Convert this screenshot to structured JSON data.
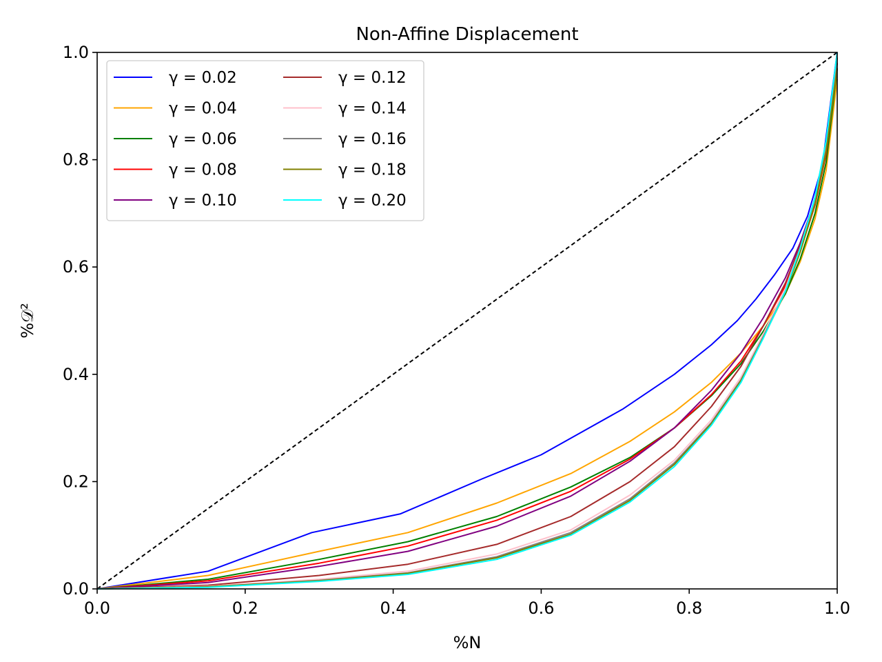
{
  "chart_data": {
    "type": "line",
    "title": "Non-Affine Displacement",
    "xlabel": "%N",
    "ylabel": "%𝒟²",
    "xlim": [
      0,
      1
    ],
    "ylim": [
      0,
      1
    ],
    "x_ticks": [
      "0.0",
      "0.2",
      "0.4",
      "0.6",
      "0.8",
      "1.0"
    ],
    "y_ticks": [
      "0.0",
      "0.2",
      "0.4",
      "0.6",
      "0.8",
      "1.0"
    ],
    "grid": false,
    "legend_position": "upper-left",
    "legend_columns": 2,
    "reference_line": {
      "name": "identity",
      "style": "dashed",
      "color": "#000000",
      "x": [
        0,
        1
      ],
      "y": [
        0,
        1
      ]
    },
    "series": [
      {
        "name": "γ = 0.02",
        "color": "#0000ff",
        "x": [
          0,
          0.15,
          0.29,
          0.41,
          0.52,
          0.6,
          0.71,
          0.78,
          0.83,
          0.865,
          0.89,
          0.915,
          0.94,
          0.96,
          0.98,
          1.0
        ],
        "y": [
          0,
          0.033,
          0.105,
          0.14,
          0.205,
          0.25,
          0.335,
          0.4,
          0.455,
          0.5,
          0.54,
          0.585,
          0.635,
          0.695,
          0.79,
          1.0
        ]
      },
      {
        "name": "γ = 0.04",
        "color": "#ffa500",
        "x": [
          0,
          0.15,
          0.3,
          0.42,
          0.54,
          0.64,
          0.72,
          0.78,
          0.83,
          0.87,
          0.9,
          0.93,
          0.95,
          0.97,
          0.985,
          1.0
        ],
        "y": [
          0,
          0.025,
          0.07,
          0.105,
          0.16,
          0.215,
          0.275,
          0.33,
          0.385,
          0.44,
          0.49,
          0.55,
          0.61,
          0.69,
          0.78,
          0.95
        ]
      },
      {
        "name": "γ = 0.06",
        "color": "#008000",
        "x": [
          0,
          0.15,
          0.3,
          0.42,
          0.54,
          0.64,
          0.72,
          0.78,
          0.83,
          0.87,
          0.9,
          0.93,
          0.95,
          0.97,
          0.985,
          1.0
        ],
        "y": [
          0,
          0.018,
          0.055,
          0.088,
          0.135,
          0.19,
          0.245,
          0.3,
          0.36,
          0.42,
          0.48,
          0.55,
          0.615,
          0.7,
          0.795,
          0.97
        ]
      },
      {
        "name": "γ = 0.08",
        "color": "#ff0000",
        "x": [
          0,
          0.15,
          0.3,
          0.42,
          0.54,
          0.64,
          0.72,
          0.78,
          0.83,
          0.87,
          0.9,
          0.93,
          0.95,
          0.97,
          0.985,
          1.0
        ],
        "y": [
          0,
          0.015,
          0.048,
          0.08,
          0.128,
          0.182,
          0.242,
          0.3,
          0.362,
          0.425,
          0.49,
          0.565,
          0.63,
          0.715,
          0.81,
          0.98
        ]
      },
      {
        "name": "γ = 0.10",
        "color": "#800080",
        "x": [
          0,
          0.15,
          0.3,
          0.42,
          0.54,
          0.64,
          0.72,
          0.78,
          0.83,
          0.87,
          0.9,
          0.93,
          0.95,
          0.97,
          0.985,
          1.0
        ],
        "y": [
          0,
          0.012,
          0.042,
          0.07,
          0.117,
          0.173,
          0.238,
          0.3,
          0.37,
          0.44,
          0.505,
          0.58,
          0.645,
          0.725,
          0.815,
          0.98
        ]
      },
      {
        "name": "γ = 0.12",
        "color": "#a52a2a",
        "x": [
          0,
          0.15,
          0.3,
          0.42,
          0.54,
          0.64,
          0.72,
          0.78,
          0.83,
          0.87,
          0.9,
          0.93,
          0.95,
          0.97,
          0.985,
          1.0
        ],
        "y": [
          0,
          0.007,
          0.025,
          0.046,
          0.083,
          0.135,
          0.2,
          0.265,
          0.34,
          0.415,
          0.49,
          0.57,
          0.64,
          0.725,
          0.82,
          0.99
        ]
      },
      {
        "name": "γ = 0.14",
        "color": "#ffc0cb",
        "x": [
          0,
          0.15,
          0.3,
          0.42,
          0.54,
          0.64,
          0.72,
          0.78,
          0.83,
          0.87,
          0.9,
          0.93,
          0.95,
          0.97,
          0.985,
          1.0
        ],
        "y": [
          0,
          0.005,
          0.018,
          0.033,
          0.065,
          0.11,
          0.175,
          0.24,
          0.315,
          0.395,
          0.475,
          0.56,
          0.635,
          0.725,
          0.825,
          0.99
        ]
      },
      {
        "name": "γ = 0.16",
        "color": "#808080",
        "x": [
          0,
          0.15,
          0.3,
          0.42,
          0.54,
          0.64,
          0.72,
          0.78,
          0.83,
          0.87,
          0.9,
          0.93,
          0.95,
          0.97,
          0.985,
          1.0
        ],
        "y": [
          0,
          0.004,
          0.016,
          0.03,
          0.06,
          0.105,
          0.168,
          0.235,
          0.31,
          0.39,
          0.47,
          0.555,
          0.63,
          0.72,
          0.82,
          0.99
        ]
      },
      {
        "name": "γ = 0.18",
        "color": "#808000",
        "x": [
          0,
          0.15,
          0.3,
          0.42,
          0.54,
          0.64,
          0.72,
          0.78,
          0.83,
          0.87,
          0.9,
          0.93,
          0.95,
          0.97,
          0.985,
          1.0
        ],
        "y": [
          0,
          0.004,
          0.015,
          0.029,
          0.058,
          0.102,
          0.165,
          0.232,
          0.308,
          0.388,
          0.468,
          0.553,
          0.628,
          0.718,
          0.815,
          0.97
        ]
      },
      {
        "name": "γ = 0.20",
        "color": "#00ffff",
        "x": [
          0,
          0.15,
          0.3,
          0.42,
          0.54,
          0.64,
          0.72,
          0.78,
          0.83,
          0.87,
          0.9,
          0.93,
          0.95,
          0.97,
          0.985,
          1.0
        ],
        "y": [
          0,
          0.003,
          0.014,
          0.027,
          0.055,
          0.1,
          0.162,
          0.228,
          0.305,
          0.385,
          0.467,
          0.555,
          0.635,
          0.73,
          0.835,
          1.0
        ]
      }
    ]
  }
}
